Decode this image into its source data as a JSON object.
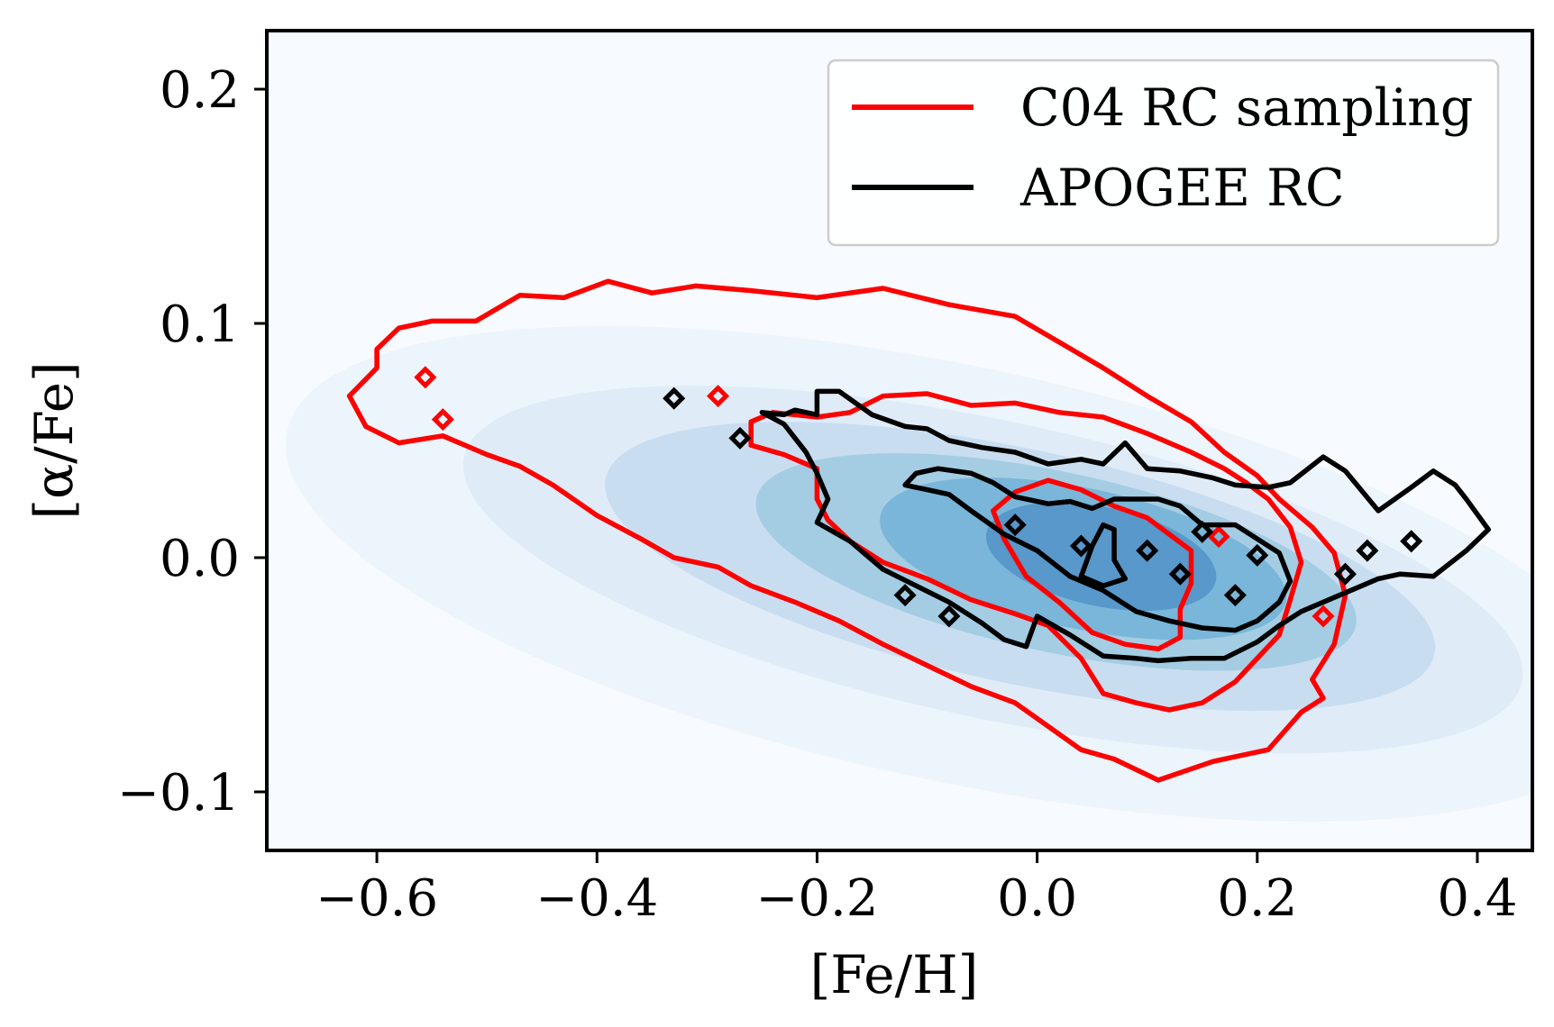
{
  "chart_data": {
    "type": "heatmap",
    "title": "",
    "xlabel": "[Fe/H]",
    "ylabel": "[α/Fe]",
    "xlim": [
      -0.7,
      0.45
    ],
    "ylim": [
      -0.125,
      0.225
    ],
    "xticks": [
      -0.6,
      -0.4,
      -0.2,
      0.0,
      0.2,
      0.4
    ],
    "xtick_labels": [
      "−0.6",
      "−0.4",
      "−0.2",
      "0.0",
      "0.2",
      "0.4"
    ],
    "yticks": [
      -0.1,
      0.0,
      0.1,
      0.2
    ],
    "ytick_labels": [
      "−0.1",
      "0.0",
      "0.1",
      "0.2"
    ],
    "grid": false,
    "legend_position": "top-right",
    "colormap": "Blues",
    "density_peak": {
      "x": 0.05,
      "y": 0.0
    },
    "series": [
      {
        "name": "C04 RC sampling",
        "color": "#ff0000",
        "kind": "contour",
        "levels": [
          {
            "points": [
              [
                -0.625,
                0.069
              ],
              [
                -0.61,
                0.056
              ],
              [
                -0.58,
                0.049
              ],
              [
                -0.54,
                0.052
              ],
              [
                -0.5,
                0.044
              ],
              [
                -0.47,
                0.039
              ],
              [
                -0.44,
                0.031
              ],
              [
                -0.4,
                0.018
              ],
              [
                -0.36,
                0.008
              ],
              [
                -0.33,
                0.0
              ],
              [
                -0.29,
                -0.004
              ],
              [
                -0.26,
                -0.012
              ],
              [
                -0.22,
                -0.019
              ],
              [
                -0.18,
                -0.027
              ],
              [
                -0.14,
                -0.037
              ],
              [
                -0.1,
                -0.046
              ],
              [
                -0.06,
                -0.055
              ],
              [
                -0.02,
                -0.062
              ],
              [
                0.01,
                -0.072
              ],
              [
                0.04,
                -0.082
              ],
              [
                0.07,
                -0.086
              ],
              [
                0.11,
                -0.095
              ],
              [
                0.16,
                -0.087
              ],
              [
                0.21,
                -0.082
              ],
              [
                0.24,
                -0.066
              ],
              [
                0.26,
                -0.06
              ],
              [
                0.25,
                -0.052
              ],
              [
                0.27,
                -0.037
              ],
              [
                0.28,
                -0.016
              ],
              [
                0.27,
                0.002
              ],
              [
                0.25,
                0.013
              ],
              [
                0.22,
                0.025
              ],
              [
                0.2,
                0.035
              ],
              [
                0.17,
                0.045
              ],
              [
                0.14,
                0.058
              ],
              [
                0.1,
                0.069
              ],
              [
                0.06,
                0.081
              ],
              [
                0.02,
                0.092
              ],
              [
                -0.02,
                0.103
              ],
              [
                -0.08,
                0.108
              ],
              [
                -0.14,
                0.115
              ],
              [
                -0.2,
                0.111
              ],
              [
                -0.26,
                0.114
              ],
              [
                -0.31,
                0.116
              ],
              [
                -0.35,
                0.113
              ],
              [
                -0.39,
                0.118
              ],
              [
                -0.43,
                0.111
              ],
              [
                -0.47,
                0.112
              ],
              [
                -0.51,
                0.101
              ],
              [
                -0.55,
                0.101
              ],
              [
                -0.58,
                0.098
              ],
              [
                -0.6,
                0.089
              ],
              [
                -0.6,
                0.081
              ],
              [
                -0.625,
                0.069
              ]
            ]
          },
          {
            "points": [
              [
                -0.26,
                0.048
              ],
              [
                -0.23,
                0.044
              ],
              [
                -0.2,
                0.038
              ],
              [
                -0.2,
                0.03
              ],
              [
                -0.2,
                0.025
              ],
              [
                -0.19,
                0.016
              ],
              [
                -0.17,
                0.007
              ],
              [
                -0.14,
                -0.002
              ],
              [
                -0.1,
                -0.009
              ],
              [
                -0.06,
                -0.018
              ],
              [
                -0.02,
                -0.024
              ],
              [
                0.01,
                -0.029
              ],
              [
                0.04,
                -0.043
              ],
              [
                0.06,
                -0.058
              ],
              [
                0.09,
                -0.062
              ],
              [
                0.12,
                -0.065
              ],
              [
                0.15,
                -0.062
              ],
              [
                0.18,
                -0.053
              ],
              [
                0.2,
                -0.043
              ],
              [
                0.22,
                -0.033
              ],
              [
                0.23,
                -0.018
              ],
              [
                0.24,
                -0.002
              ],
              [
                0.23,
                0.013
              ],
              [
                0.21,
                0.025
              ],
              [
                0.19,
                0.032
              ],
              [
                0.17,
                0.038
              ],
              [
                0.14,
                0.045
              ],
              [
                0.1,
                0.053
              ],
              [
                0.06,
                0.06
              ],
              [
                0.02,
                0.062
              ],
              [
                -0.02,
                0.066
              ],
              [
                -0.06,
                0.065
              ],
              [
                -0.1,
                0.07
              ],
              [
                -0.14,
                0.069
              ],
              [
                -0.17,
                0.062
              ],
              [
                -0.2,
                0.06
              ],
              [
                -0.24,
                0.062
              ],
              [
                -0.26,
                0.058
              ],
              [
                -0.26,
                0.048
              ]
            ]
          },
          {
            "points": [
              [
                -0.03,
                0.008
              ],
              [
                -0.01,
                -0.008
              ],
              [
                0.02,
                -0.019
              ],
              [
                0.05,
                -0.032
              ],
              [
                0.08,
                -0.037
              ],
              [
                0.11,
                -0.039
              ],
              [
                0.13,
                -0.034
              ],
              [
                0.13,
                -0.022
              ],
              [
                0.14,
                -0.011
              ],
              [
                0.14,
                0.003
              ],
              [
                0.12,
                0.01
              ],
              [
                0.1,
                0.017
              ],
              [
                0.07,
                0.022
              ],
              [
                0.04,
                0.029
              ],
              [
                0.01,
                0.033
              ],
              [
                -0.02,
                0.028
              ],
              [
                -0.04,
                0.02
              ],
              [
                -0.03,
                0.008
              ]
            ]
          }
        ],
        "islands": [
          [
            -0.556,
            0.077
          ],
          [
            -0.54,
            0.059
          ],
          [
            -0.29,
            0.069
          ],
          [
            0.165,
            0.009
          ],
          [
            0.26,
            -0.025
          ]
        ]
      },
      {
        "name": "APOGEE RC",
        "color": "#000000",
        "kind": "contour",
        "levels": [
          {
            "points": [
              [
                -0.25,
                0.062
              ],
              [
                -0.23,
                0.057
              ],
              [
                -0.21,
                0.045
              ],
              [
                -0.2,
                0.036
              ],
              [
                -0.19,
                0.025
              ],
              [
                -0.2,
                0.015
              ],
              [
                -0.17,
                0.007
              ],
              [
                -0.14,
                -0.005
              ],
              [
                -0.11,
                -0.012
              ],
              [
                -0.08,
                -0.019
              ],
              [
                -0.05,
                -0.028
              ],
              [
                -0.03,
                -0.035
              ],
              [
                -0.01,
                -0.038
              ],
              [
                0.0,
                -0.025
              ],
              [
                0.03,
                -0.033
              ],
              [
                0.06,
                -0.042
              ],
              [
                0.09,
                -0.043
              ],
              [
                0.11,
                -0.044
              ],
              [
                0.14,
                -0.043
              ],
              [
                0.17,
                -0.043
              ],
              [
                0.2,
                -0.036
              ],
              [
                0.22,
                -0.029
              ],
              [
                0.24,
                -0.023
              ],
              [
                0.27,
                -0.017
              ],
              [
                0.29,
                -0.013
              ],
              [
                0.31,
                -0.009
              ],
              [
                0.33,
                -0.007
              ],
              [
                0.36,
                -0.008
              ],
              [
                0.39,
                0.003
              ],
              [
                0.41,
                0.012
              ],
              [
                0.39,
                0.025
              ],
              [
                0.38,
                0.031
              ],
              [
                0.36,
                0.037
              ],
              [
                0.34,
                0.03
              ],
              [
                0.31,
                0.02
              ],
              [
                0.28,
                0.037
              ],
              [
                0.26,
                0.043
              ],
              [
                0.23,
                0.032
              ],
              [
                0.21,
                0.03
              ],
              [
                0.18,
                0.031
              ],
              [
                0.16,
                0.034
              ],
              [
                0.13,
                0.037
              ],
              [
                0.1,
                0.038
              ],
              [
                0.08,
                0.049
              ],
              [
                0.06,
                0.04
              ],
              [
                0.04,
                0.042
              ],
              [
                0.01,
                0.04
              ],
              [
                -0.02,
                0.045
              ],
              [
                -0.05,
                0.047
              ],
              [
                -0.08,
                0.05
              ],
              [
                -0.1,
                0.055
              ],
              [
                -0.12,
                0.056
              ],
              [
                -0.15,
                0.061
              ],
              [
                -0.18,
                0.071
              ],
              [
                -0.2,
                0.071
              ],
              [
                -0.2,
                0.061
              ],
              [
                -0.22,
                0.063
              ],
              [
                -0.23,
                0.061
              ],
              [
                -0.25,
                0.062
              ]
            ]
          },
          {
            "points": [
              [
                -0.12,
                0.031
              ],
              [
                -0.1,
                0.029
              ],
              [
                -0.08,
                0.027
              ],
              [
                -0.06,
                0.02
              ],
              [
                -0.03,
                0.01
              ],
              [
                0.0,
                0.003
              ],
              [
                0.03,
                -0.008
              ],
              [
                0.06,
                -0.014
              ],
              [
                0.09,
                -0.023
              ],
              [
                0.12,
                -0.027
              ],
              [
                0.15,
                -0.03
              ],
              [
                0.18,
                -0.031
              ],
              [
                0.2,
                -0.027
              ],
              [
                0.22,
                -0.019
              ],
              [
                0.23,
                -0.01
              ],
              [
                0.22,
                0.002
              ],
              [
                0.2,
                0.008
              ],
              [
                0.18,
                0.014
              ],
              [
                0.15,
                0.014
              ],
              [
                0.13,
                0.022
              ],
              [
                0.11,
                0.025
              ],
              [
                0.09,
                0.025
              ],
              [
                0.07,
                0.025
              ],
              [
                0.05,
                0.021
              ],
              [
                0.03,
                0.024
              ],
              [
                0.01,
                0.023
              ],
              [
                -0.02,
                0.026
              ],
              [
                -0.04,
                0.032
              ],
              [
                -0.06,
                0.036
              ],
              [
                -0.09,
                0.038
              ],
              [
                -0.11,
                0.036
              ],
              [
                -0.12,
                0.031
              ]
            ]
          },
          {
            "points": [
              [
                0.04,
                -0.008
              ],
              [
                0.06,
                -0.012
              ],
              [
                0.08,
                -0.009
              ],
              [
                0.07,
                -0.001
              ],
              [
                0.07,
                0.012
              ],
              [
                0.06,
                0.014
              ],
              [
                0.05,
                0.005
              ],
              [
                0.04,
                -0.008
              ]
            ]
          }
        ],
        "islands": [
          [
            -0.33,
            0.068
          ],
          [
            -0.27,
            0.051
          ],
          [
            -0.12,
            -0.016
          ],
          [
            -0.08,
            -0.025
          ],
          [
            -0.02,
            0.014
          ],
          [
            0.04,
            0.005
          ],
          [
            0.1,
            0.003
          ],
          [
            0.13,
            -0.007
          ],
          [
            0.15,
            0.011
          ],
          [
            0.18,
            -0.016
          ],
          [
            0.2,
            0.001
          ],
          [
            0.28,
            -0.007
          ],
          [
            0.3,
            0.003
          ],
          [
            0.34,
            0.007
          ]
        ]
      }
    ]
  }
}
